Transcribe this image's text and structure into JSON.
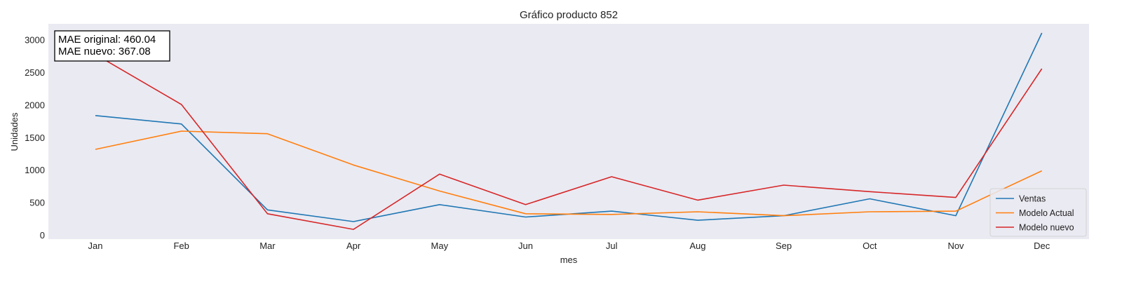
{
  "chart_data": {
    "type": "line",
    "title": "Gráfico producto 852",
    "xlabel": "mes",
    "ylabel": "Unidades",
    "categories": [
      "Jan",
      "Feb",
      "Mar",
      "Apr",
      "May",
      "Jun",
      "Jul",
      "Aug",
      "Sep",
      "Oct",
      "Nov",
      "Dec"
    ],
    "ylim": [
      -60,
      3250
    ],
    "yticks": [
      0,
      500,
      1000,
      1500,
      2000,
      2500,
      3000
    ],
    "grid": false,
    "legend_position": "lower-right",
    "background_color": "#eaeaf2",
    "series": [
      {
        "name": "Ventas",
        "color": "#1f77b4",
        "values": [
          1840,
          1710,
          390,
          210,
          470,
          280,
          370,
          230,
          300,
          560,
          300,
          3110
        ]
      },
      {
        "name": "Modelo Actual",
        "color": "#ff7f0e",
        "values": [
          1320,
          1600,
          1560,
          1080,
          680,
          330,
          320,
          360,
          300,
          360,
          370,
          990
        ]
      },
      {
        "name": "Modelo nuevo",
        "color": "#d62728",
        "values": [
          2780,
          2010,
          330,
          90,
          940,
          470,
          900,
          540,
          770,
          670,
          580,
          2560
        ]
      }
    ],
    "annotation": {
      "line1": "MAE original: 460.04",
      "line2": "MAE nuevo: 367.08"
    }
  }
}
